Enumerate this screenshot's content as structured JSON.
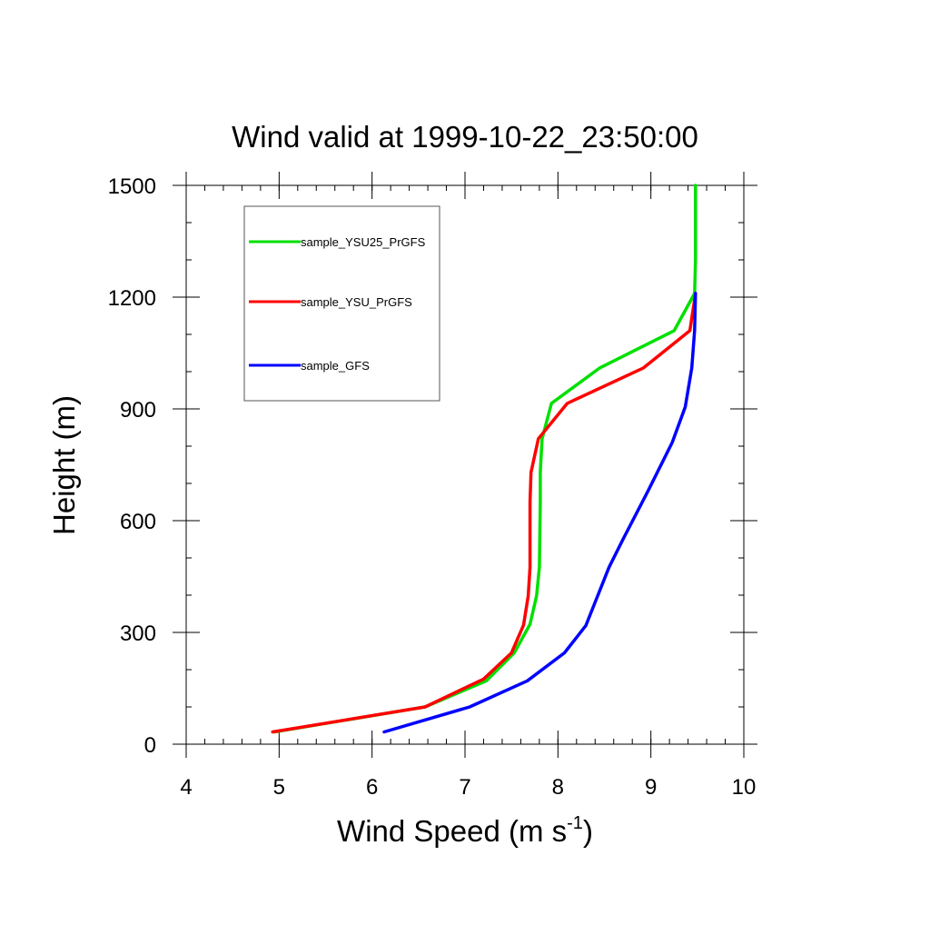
{
  "chart_data": {
    "type": "line",
    "title": "Wind valid at 1999-10-22_23:50:00",
    "xlabel_main": "Wind Speed (m s",
    "xlabel_sup": "-1",
    "xlabel_close": ")",
    "ylabel": "Height (m)",
    "xlim": [
      4,
      10
    ],
    "ylim": [
      0,
      1500
    ],
    "x_major_ticks": [
      4,
      5,
      6,
      7,
      8,
      9,
      10
    ],
    "x_tick_labels": [
      "4",
      "5",
      "6",
      "7",
      "8",
      "9",
      "10"
    ],
    "y_major_ticks": [
      0,
      300,
      600,
      900,
      1200,
      1500
    ],
    "y_tick_labels": [
      "0",
      "300",
      "600",
      "900",
      "1200",
      "1500"
    ],
    "x_minor_step": 0.2,
    "y_minor_step": 100,
    "legend_position": "top-left",
    "series": [
      {
        "name": "sample_YSU25_PrGFS",
        "color": "#00e000",
        "points": [
          [
            4.95,
            33
          ],
          [
            6.57,
            100
          ],
          [
            7.23,
            170
          ],
          [
            7.53,
            245
          ],
          [
            7.7,
            322
          ],
          [
            7.77,
            398
          ],
          [
            7.8,
            475
          ],
          [
            7.81,
            650
          ],
          [
            7.81,
            730
          ],
          [
            7.83,
            820
          ],
          [
            7.93,
            915
          ],
          [
            8.45,
            1010
          ],
          [
            9.25,
            1110
          ],
          [
            9.47,
            1210
          ],
          [
            9.48,
            1300
          ],
          [
            9.48,
            1500
          ]
        ]
      },
      {
        "name": "sample_YSU_PrGFS",
        "color": "#ff0000",
        "points": [
          [
            4.93,
            33
          ],
          [
            6.57,
            100
          ],
          [
            7.2,
            175
          ],
          [
            7.5,
            245
          ],
          [
            7.63,
            320
          ],
          [
            7.68,
            398
          ],
          [
            7.7,
            475
          ],
          [
            7.7,
            650
          ],
          [
            7.71,
            730
          ],
          [
            7.79,
            820
          ],
          [
            8.1,
            915
          ],
          [
            8.92,
            1010
          ],
          [
            9.42,
            1110
          ],
          [
            9.48,
            1210
          ]
        ]
      },
      {
        "name": "sample_GFS",
        "color": "#0000ff",
        "points": [
          [
            6.13,
            33
          ],
          [
            7.05,
            100
          ],
          [
            7.67,
            170
          ],
          [
            8.07,
            245
          ],
          [
            8.3,
            318
          ],
          [
            8.55,
            475
          ],
          [
            8.7,
            550
          ],
          [
            8.97,
            680
          ],
          [
            9.23,
            810
          ],
          [
            9.37,
            905
          ],
          [
            9.44,
            1010
          ],
          [
            9.47,
            1110
          ],
          [
            9.48,
            1210
          ]
        ]
      }
    ]
  }
}
